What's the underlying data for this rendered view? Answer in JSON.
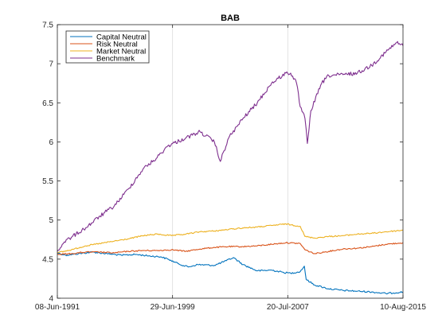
{
  "chart_data": {
    "type": "line",
    "title": "BAB",
    "xlabel": "",
    "ylabel": "",
    "x_tick_labels": [
      "08-Jun-1991",
      "29-Jun-1999",
      "20-Jul-2007",
      "10-Aug-2015"
    ],
    "x_ticks": [
      "1991-06-08",
      "1999-06-29",
      "2007-07-20",
      "2015-08-10"
    ],
    "xlim": [
      "1991-06-08",
      "2015-08-10"
    ],
    "ylim": [
      4,
      7.5
    ],
    "y_ticks": [
      4,
      4.5,
      5,
      5.5,
      6,
      6.5,
      7,
      7.5
    ],
    "y_tick_labels": [
      "4",
      "4.5",
      "5",
      "5.5",
      "6",
      "6.5",
      "7",
      "7.5"
    ],
    "grid": "vertical",
    "legend_position": "top-left",
    "series": [
      {
        "name": "Capital Neutral",
        "color": "#0072bd",
        "points": [
          [
            "1991-06-08",
            4.58
          ],
          [
            "1992-01-01",
            4.55
          ],
          [
            "1992-12-01",
            4.57
          ],
          [
            "1993-12-01",
            4.59
          ],
          [
            "1994-12-01",
            4.57
          ],
          [
            "1995-12-01",
            4.55
          ],
          [
            "1996-12-01",
            4.56
          ],
          [
            "1997-12-01",
            4.54
          ],
          [
            "1998-09-01",
            4.53
          ],
          [
            "1999-03-01",
            4.5
          ],
          [
            "1999-12-01",
            4.44
          ],
          [
            "2000-08-01",
            4.4
          ],
          [
            "2001-04-01",
            4.43
          ],
          [
            "2002-06-01",
            4.42
          ],
          [
            "2003-04-01",
            4.48
          ],
          [
            "2003-10-01",
            4.52
          ],
          [
            "2004-06-01",
            4.43
          ],
          [
            "2005-06-01",
            4.35
          ],
          [
            "2006-06-01",
            4.36
          ],
          [
            "2007-04-01",
            4.33
          ],
          [
            "2007-10-01",
            4.32
          ],
          [
            "2008-06-01",
            4.34
          ],
          [
            "2008-09-15",
            4.41
          ],
          [
            "2008-11-01",
            4.24
          ],
          [
            "2009-06-01",
            4.17
          ],
          [
            "2010-06-01",
            4.12
          ],
          [
            "2011-06-01",
            4.1
          ],
          [
            "2012-06-01",
            4.09
          ],
          [
            "2013-06-01",
            4.08
          ],
          [
            "2014-06-01",
            4.06
          ],
          [
            "2015-08-10",
            4.08
          ]
        ]
      },
      {
        "name": "Risk Neutral",
        "color": "#d95319",
        "points": [
          [
            "1991-06-08",
            4.56
          ],
          [
            "1992-06-01",
            4.57
          ],
          [
            "1993-06-01",
            4.59
          ],
          [
            "1994-06-01",
            4.59
          ],
          [
            "1995-06-01",
            4.58
          ],
          [
            "1996-06-01",
            4.6
          ],
          [
            "1997-06-01",
            4.61
          ],
          [
            "1998-06-01",
            4.61
          ],
          [
            "1999-06-01",
            4.62
          ],
          [
            "2000-06-01",
            4.6
          ],
          [
            "2001-06-01",
            4.63
          ],
          [
            "2002-06-01",
            4.65
          ],
          [
            "2003-06-01",
            4.66
          ],
          [
            "2004-06-01",
            4.66
          ],
          [
            "2005-06-01",
            4.67
          ],
          [
            "2006-06-01",
            4.69
          ],
          [
            "2007-06-01",
            4.71
          ],
          [
            "2008-06-01",
            4.7
          ],
          [
            "2008-10-01",
            4.62
          ],
          [
            "2009-06-01",
            4.57
          ],
          [
            "2010-06-01",
            4.6
          ],
          [
            "2011-06-01",
            4.63
          ],
          [
            "2012-06-01",
            4.64
          ],
          [
            "2013-06-01",
            4.66
          ],
          [
            "2014-06-01",
            4.69
          ],
          [
            "2015-08-10",
            4.71
          ]
        ]
      },
      {
        "name": "Market Neutral",
        "color": "#edb120",
        "points": [
          [
            "1991-06-08",
            4.58
          ],
          [
            "1992-06-01",
            4.62
          ],
          [
            "1993-06-01",
            4.67
          ],
          [
            "1994-06-01",
            4.7
          ],
          [
            "1995-06-01",
            4.73
          ],
          [
            "1996-06-01",
            4.76
          ],
          [
            "1997-06-01",
            4.8
          ],
          [
            "1998-06-01",
            4.82
          ],
          [
            "1999-06-01",
            4.8
          ],
          [
            "2000-06-01",
            4.82
          ],
          [
            "2001-06-01",
            4.85
          ],
          [
            "2002-06-01",
            4.86
          ],
          [
            "2003-06-01",
            4.88
          ],
          [
            "2004-06-01",
            4.9
          ],
          [
            "2005-06-01",
            4.91
          ],
          [
            "2006-06-01",
            4.93
          ],
          [
            "2007-06-01",
            4.95
          ],
          [
            "2008-06-01",
            4.92
          ],
          [
            "2008-10-01",
            4.79
          ],
          [
            "2009-06-01",
            4.77
          ],
          [
            "2010-06-01",
            4.79
          ],
          [
            "2011-06-01",
            4.8
          ],
          [
            "2012-06-01",
            4.82
          ],
          [
            "2013-06-01",
            4.83
          ],
          [
            "2014-06-01",
            4.85
          ],
          [
            "2015-08-10",
            4.87
          ]
        ]
      },
      {
        "name": "Benchmark",
        "color": "#7e2f8e",
        "points": [
          [
            "1991-06-08",
            4.6
          ],
          [
            "1991-12-01",
            4.72
          ],
          [
            "1992-06-01",
            4.78
          ],
          [
            "1993-06-01",
            4.9
          ],
          [
            "1994-06-01",
            5.05
          ],
          [
            "1995-06-01",
            5.18
          ],
          [
            "1996-06-01",
            5.4
          ],
          [
            "1997-06-01",
            5.65
          ],
          [
            "1998-06-01",
            5.8
          ],
          [
            "1999-03-01",
            5.95
          ],
          [
            "2000-06-01",
            6.05
          ],
          [
            "2001-06-01",
            6.13
          ],
          [
            "2002-06-01",
            6.0
          ],
          [
            "2002-11-01",
            5.75
          ],
          [
            "2003-06-01",
            6.05
          ],
          [
            "2004-06-01",
            6.3
          ],
          [
            "2005-06-01",
            6.5
          ],
          [
            "2006-06-01",
            6.75
          ],
          [
            "2007-06-01",
            6.88
          ],
          [
            "2007-10-01",
            6.88
          ],
          [
            "2008-03-01",
            6.75
          ],
          [
            "2008-06-01",
            6.45
          ],
          [
            "2008-10-01",
            6.3
          ],
          [
            "2008-12-01",
            5.98
          ],
          [
            "2009-03-01",
            6.4
          ],
          [
            "2009-12-01",
            6.75
          ],
          [
            "2010-06-01",
            6.85
          ],
          [
            "2011-06-01",
            6.86
          ],
          [
            "2012-06-01",
            6.88
          ],
          [
            "2013-06-01",
            6.98
          ],
          [
            "2014-06-01",
            7.15
          ],
          [
            "2015-03-01",
            7.27
          ],
          [
            "2015-08-10",
            7.23
          ]
        ]
      }
    ]
  }
}
